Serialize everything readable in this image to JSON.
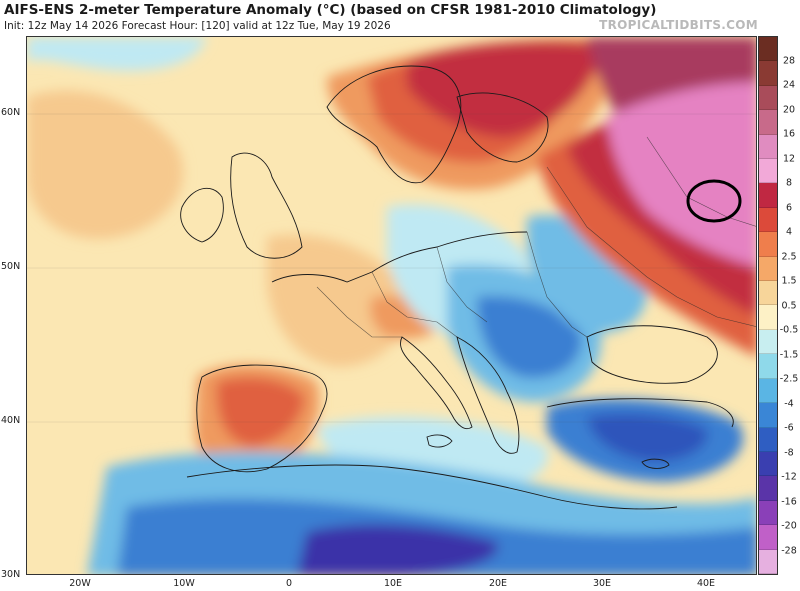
{
  "header": {
    "title": "AIFS-ENS 2-meter Temperature Anomaly (°C) (based on CFSR 1981-2010 Climatology)",
    "subtitle": "Init: 12z May 14 2026   Forecast Hour: [120]   valid at 12z Tue, May 19 2026",
    "brand": "TROPICALTIDBITS.COM"
  },
  "axes": {
    "lat_labels": [
      "60N",
      "50N",
      "40N",
      "30N"
    ],
    "lon_labels": [
      "20W",
      "10W",
      "0",
      "10E",
      "20E",
      "30E",
      "40E"
    ]
  },
  "colorbar": {
    "labels": [
      "28",
      "24",
      "20",
      "16",
      "12",
      "8",
      "6",
      "4",
      "2.5",
      "1.5",
      "0.5",
      "-0.5",
      "-1.5",
      "-2.5",
      "-4",
      "-6",
      "-8",
      "-12",
      "-16",
      "-20",
      "-28"
    ],
    "colors": [
      "#6b2d22",
      "#8a3a33",
      "#a94c5a",
      "#c86a8a",
      "#e08cc0",
      "#f2a9d8",
      "#c02842",
      "#dc4a3a",
      "#ef7e4c",
      "#f5a868",
      "#f7d59a",
      "#fdf1c6",
      "#c8eef0",
      "#8fd9ea",
      "#5ab5e4",
      "#3a86d6",
      "#2f5ec2",
      "#3a3fb0",
      "#5a34a8",
      "#8a40b8",
      "#c060c8",
      "#e6b0e0"
    ]
  },
  "map_colors": {
    "ocean_neutral": "#fbe7b3",
    "warm_light": "#f6c98e",
    "warm": "#ef9a5e",
    "warm_strong": "#e0613f",
    "hot": "#c22f3f",
    "very_hot": "#a83a5e",
    "pink": "#e582c2",
    "cool_light": "#bfe9f3",
    "cool": "#6fbce6",
    "cool_strong": "#3a7fd2",
    "cold": "#2f55bb",
    "very_cold": "#3a33a8"
  },
  "annotation": {
    "shape": "circle-icon"
  }
}
